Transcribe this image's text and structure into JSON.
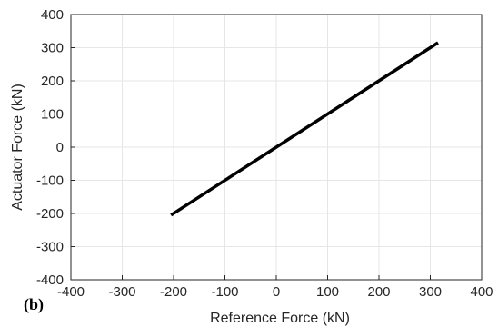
{
  "chart_data": {
    "type": "line",
    "title": "",
    "panel_label": "(b)",
    "xlabel": "Reference Force (kN)",
    "ylabel": "Actuator Force (kN)",
    "xlim": [
      -400,
      400
    ],
    "ylim": [
      -400,
      400
    ],
    "x_ticks": [
      -400,
      -300,
      -200,
      -100,
      0,
      100,
      200,
      300,
      400
    ],
    "y_ticks": [
      -400,
      -300,
      -200,
      -100,
      0,
      100,
      200,
      300,
      400
    ],
    "x_tick_labels": [
      "-400",
      "-300",
      "-200",
      "-100",
      "0",
      "100",
      "200",
      "300",
      "400"
    ],
    "y_tick_labels": [
      "-400",
      "-300",
      "-200",
      "-100",
      "0",
      "100",
      "200",
      "300",
      "400"
    ],
    "grid": true,
    "series": [
      {
        "x": [
          -205,
          0,
          315
        ],
        "y": [
          -205,
          0,
          315
        ],
        "color": "#000000"
      }
    ]
  }
}
